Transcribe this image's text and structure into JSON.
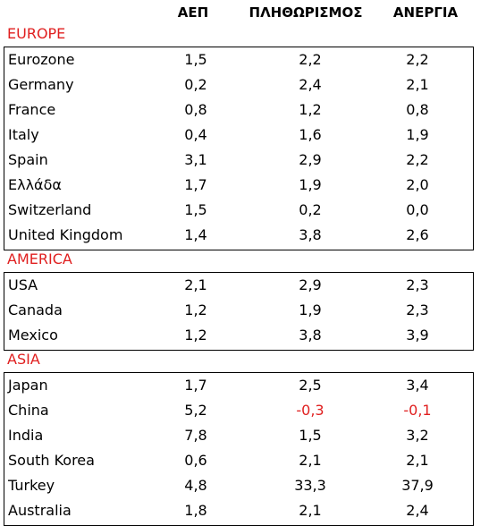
{
  "headers": [
    "ΑΕΠ",
    "ΠΛΗΘΩΡΙΣΜΟΣ",
    "ΑΝΕΡΓΙΑ"
  ],
  "sections": [
    {
      "title": "EUROPE",
      "rows": [
        [
          "Eurozone",
          "1,5",
          "2,2",
          "2,2"
        ],
        [
          "Germany",
          "0,2",
          "2,4",
          "2,1"
        ],
        [
          "France",
          "0,8",
          "1,2",
          "0,8"
        ],
        [
          "Italy",
          "0,4",
          "1,6",
          "1,9"
        ],
        [
          "Spain",
          "3,1",
          "2,9",
          "2,2"
        ],
        [
          "Ελλάδα",
          "1,7",
          "1,9",
          "2,0"
        ],
        [
          "Switzerland",
          "1,5",
          "0,2",
          "0,0"
        ],
        [
          "United Kingdom",
          "1,4",
          "3,8",
          "2,6"
        ]
      ]
    },
    {
      "title": "AMERICA",
      "rows": [
        [
          "USA",
          "2,1",
          "2,9",
          "2,3"
        ],
        [
          "Canada",
          "1,2",
          "1,9",
          "2,3"
        ],
        [
          "Mexico",
          "1,2",
          "3,8",
          "3,9"
        ]
      ]
    },
    {
      "title": "ASIA",
      "rows": [
        [
          "Japan",
          "1,7",
          "2,5",
          "3,4"
        ],
        [
          "China",
          "5,2",
          "-0,3",
          "-0,1"
        ],
        [
          "India",
          "7,8",
          "1,5",
          "3,2"
        ],
        [
          "South Korea",
          "0,6",
          "2,1",
          "2,1"
        ],
        [
          "Turkey",
          "4,8",
          "33,3",
          "37,9"
        ],
        [
          "Australia",
          "1,8",
          "2,1",
          "2,4"
        ]
      ]
    }
  ],
  "colors": {
    "region_title": "#e02020",
    "negative": "#e02020"
  }
}
